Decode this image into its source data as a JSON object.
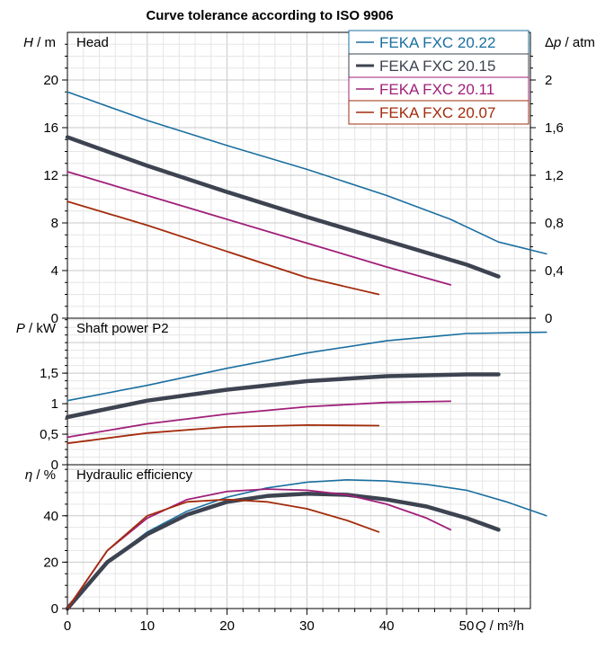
{
  "chart_data": {
    "type": "line",
    "title": "Curve tolerance according to ISO 9906",
    "xlabel": "Q / m³/h",
    "xlim": [
      0,
      58
    ],
    "xticks": [
      "0",
      "10",
      "20",
      "30",
      "40",
      "50"
    ],
    "legend": {
      "placement": "top-right",
      "entries": [
        "FEKA FXC 20.22",
        "FEKA FXC 20.15",
        "FEKA FXC 20.11",
        "FEKA FXC 20.07"
      ]
    },
    "colors": {
      "FEKA FXC 20.22": "#1a6fa0",
      "FEKA FXC 20.15": "#3d4350",
      "FEKA FXC 20.11": "#a0207a",
      "FEKA FXC 20.07": "#a32c0c"
    },
    "panels": [
      {
        "title": "Head",
        "ylabel_left": "H / m",
        "ylim": [
          0,
          24
        ],
        "yticks_left": [
          "0",
          "4",
          "8",
          "12",
          "16",
          "20"
        ],
        "ylabel_right": "Δp / atm",
        "yticks_right": [
          "0",
          "0,4",
          "0,8",
          "1,2",
          "1,6",
          "2"
        ],
        "series": [
          {
            "name": "FEKA FXC 20.22",
            "x": [
              0,
              10,
              20,
              30,
              40,
              48,
              54,
              60
            ],
            "y": [
              19,
              16.6,
              14.5,
              12.5,
              10.3,
              8.3,
              6.4,
              5.4
            ]
          },
          {
            "name": "FEKA FXC 20.15",
            "x": [
              0,
              10,
              20,
              30,
              40,
              50,
              54
            ],
            "y": [
              15.2,
              12.8,
              10.6,
              8.5,
              6.5,
              4.5,
              3.5
            ]
          },
          {
            "name": "FEKA FXC 20.11",
            "x": [
              0,
              10,
              20,
              30,
              40,
              48
            ],
            "y": [
              12.3,
              10.3,
              8.3,
              6.3,
              4.3,
              2.8
            ]
          },
          {
            "name": "FEKA FXC 20.07",
            "x": [
              0,
              10,
              20,
              30,
              39
            ],
            "y": [
              9.8,
              7.8,
              5.6,
              3.4,
              2
            ]
          }
        ]
      },
      {
        "title": "Shaft power P2",
        "ylabel_left": "P / kW",
        "ylim": [
          0,
          2.4
        ],
        "yticks_left": [
          "0",
          "0,5",
          "1",
          "1,5"
        ],
        "series": [
          {
            "name": "FEKA FXC 20.22",
            "x": [
              0,
              10,
              20,
              30,
              40,
              50,
              60
            ],
            "y": [
              1.05,
              1.3,
              1.58,
              1.83,
              2.03,
              2.15,
              2.17
            ]
          },
          {
            "name": "FEKA FXC 20.15",
            "x": [
              0,
              10,
              20,
              30,
              40,
              50,
              54
            ],
            "y": [
              0.78,
              1.05,
              1.23,
              1.37,
              1.45,
              1.48,
              1.48
            ]
          },
          {
            "name": "FEKA FXC 20.11",
            "x": [
              0,
              10,
              20,
              30,
              40,
              48
            ],
            "y": [
              0.45,
              0.67,
              0.83,
              0.95,
              1.02,
              1.04
            ]
          },
          {
            "name": "FEKA FXC 20.07",
            "x": [
              0,
              10,
              20,
              30,
              39
            ],
            "y": [
              0.35,
              0.52,
              0.62,
              0.65,
              0.64
            ]
          }
        ]
      },
      {
        "title": "Hydraulic efficiency",
        "ylabel_left": "η / %",
        "ylim": [
          0,
          62
        ],
        "yticks_left": [
          "0",
          "20",
          "40"
        ],
        "series": [
          {
            "name": "FEKA FXC 20.22",
            "x": [
              0,
              5,
              10,
              15,
              20,
              25,
              30,
              35,
              40,
              45,
              50,
              55,
              60
            ],
            "y": [
              0,
              20,
              33,
              42,
              48,
              52,
              54.5,
              55.5,
              55,
              53.5,
              51,
              46,
              40
            ]
          },
          {
            "name": "FEKA FXC 20.15",
            "x": [
              0,
              5,
              10,
              15,
              20,
              25,
              30,
              35,
              40,
              45,
              50,
              54
            ],
            "y": [
              0,
              20,
              32,
              40.5,
              46,
              48.5,
              49.5,
              49,
              47,
              44,
              39,
              34
            ]
          },
          {
            "name": "FEKA FXC 20.11",
            "x": [
              0,
              5,
              10,
              15,
              20,
              25,
              30,
              35,
              40,
              45,
              48
            ],
            "y": [
              0,
              25,
              39,
              47,
              50.5,
              51.5,
              51,
              49,
              45,
              39,
              34
            ]
          },
          {
            "name": "FEKA FXC 20.07",
            "x": [
              0,
              5,
              10,
              15,
              20,
              25,
              30,
              35,
              39
            ],
            "y": [
              0,
              25,
              40,
              46,
              47,
              46,
              43,
              38,
              33
            ]
          }
        ]
      }
    ]
  }
}
